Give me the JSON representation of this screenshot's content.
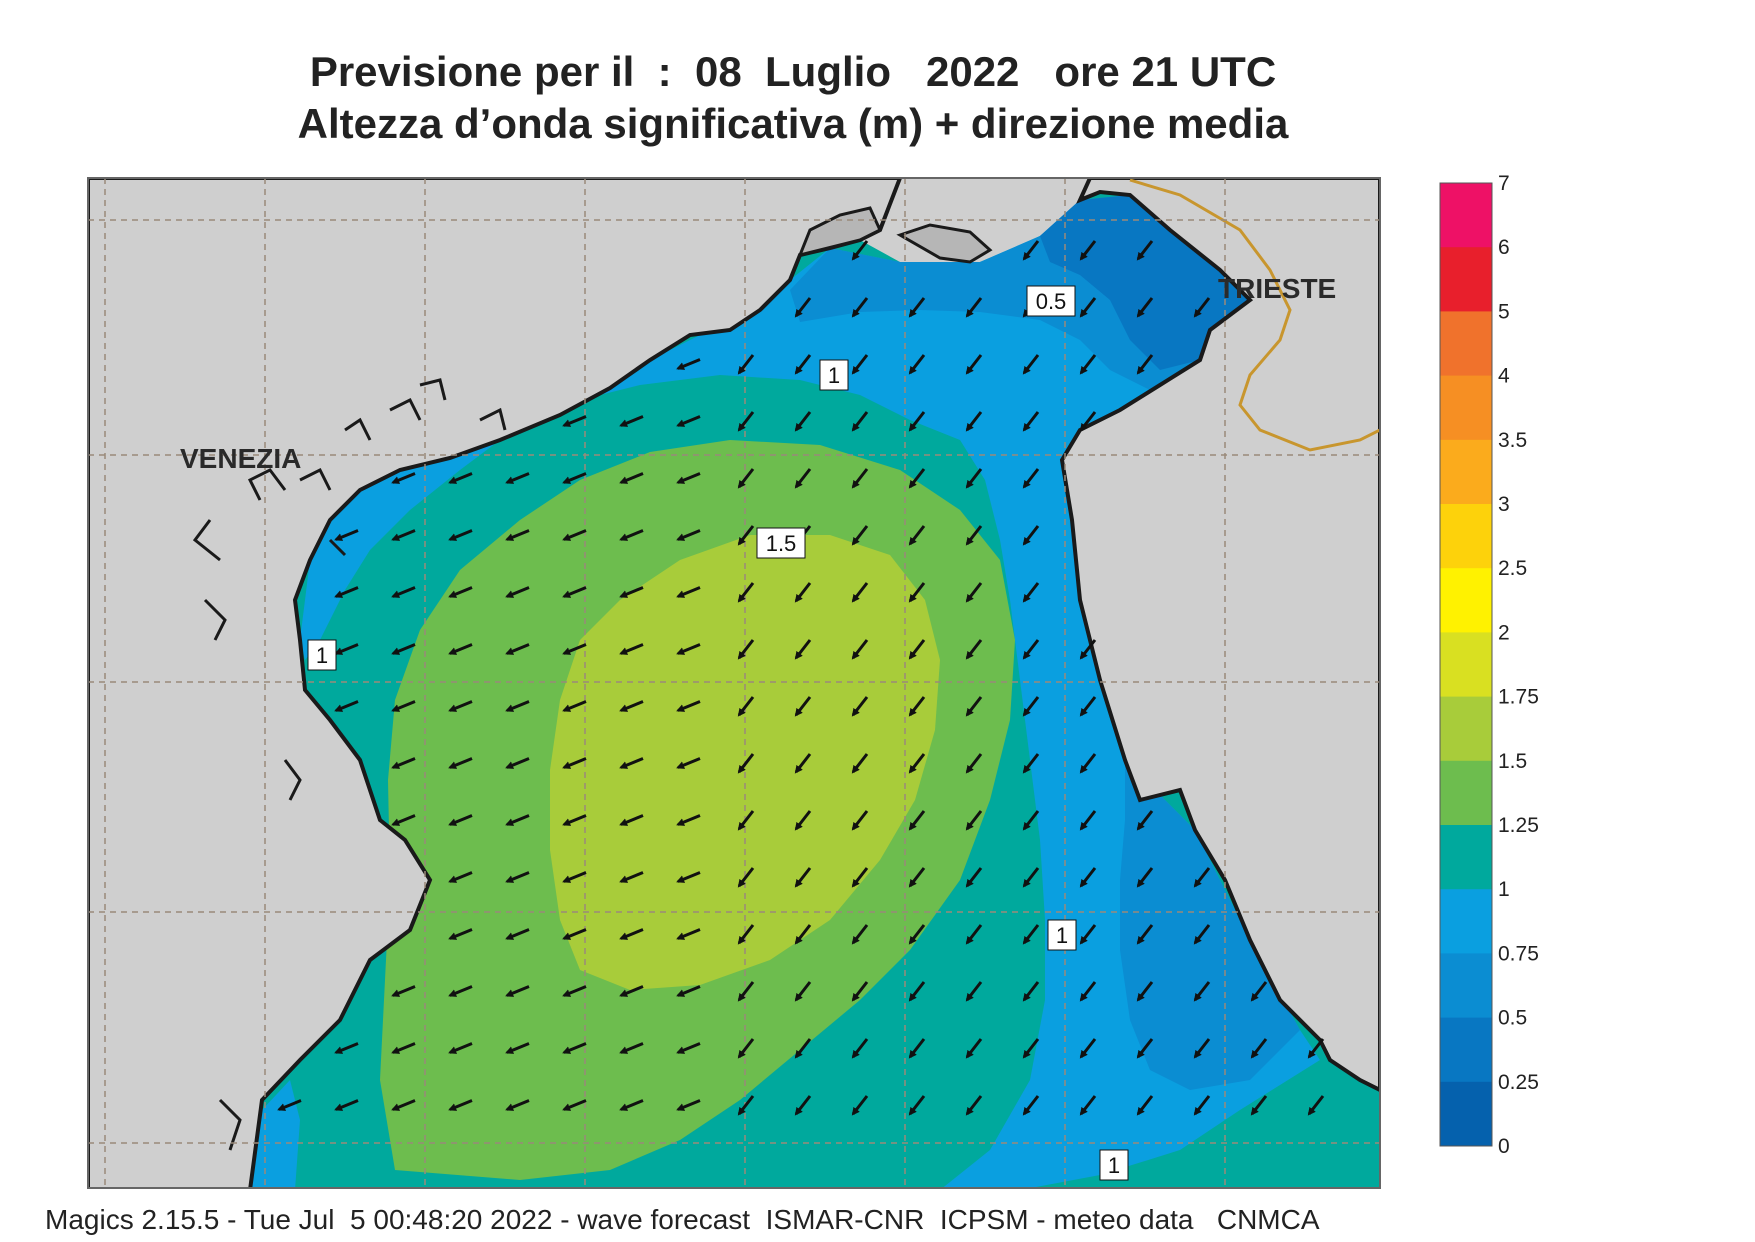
{
  "title": {
    "line1": "Previsione per il  :  08  Luglio   2022   ore 21 UTC",
    "line2": "Altezza d’onda significativa (m) + direzione media"
  },
  "footer": "Magics 2.15.5 - Tue Jul  5 00:48:20 2022 - wave forecast  ISMAR-CNR  ICPSM - meteo data   CNMCA",
  "map": {
    "cities": [
      "VENEZIA",
      "TRIESTE"
    ],
    "contour_labels": [
      "0.5",
      "1",
      "1.5",
      "1",
      "1",
      "1"
    ],
    "wave_direction": "toward south-west (arrows pointing down-left)",
    "colors": {
      "land": "#cfcfcf",
      "coast": "#1a1a1a",
      "border": "#c8962e",
      "grid": "#9a8a7a"
    }
  },
  "colorbar": {
    "ticks": [
      "7",
      "6",
      "5",
      "4",
      "3.5",
      "3",
      "2.5",
      "2",
      "1.75",
      "1.5",
      "1.25",
      "1",
      "0.75",
      "0.5",
      "0.25",
      "0"
    ],
    "colors": [
      "#ee1166",
      "#e81f2c",
      "#f0722c",
      "#f68f23",
      "#fbab1c",
      "#fdd20b",
      "#fff200",
      "#d9e021",
      "#a8cc3a",
      "#6dbd4e",
      "#00a99d",
      "#0a9fe0",
      "#0b8dd2",
      "#0877c2",
      "#0561ad"
    ]
  }
}
